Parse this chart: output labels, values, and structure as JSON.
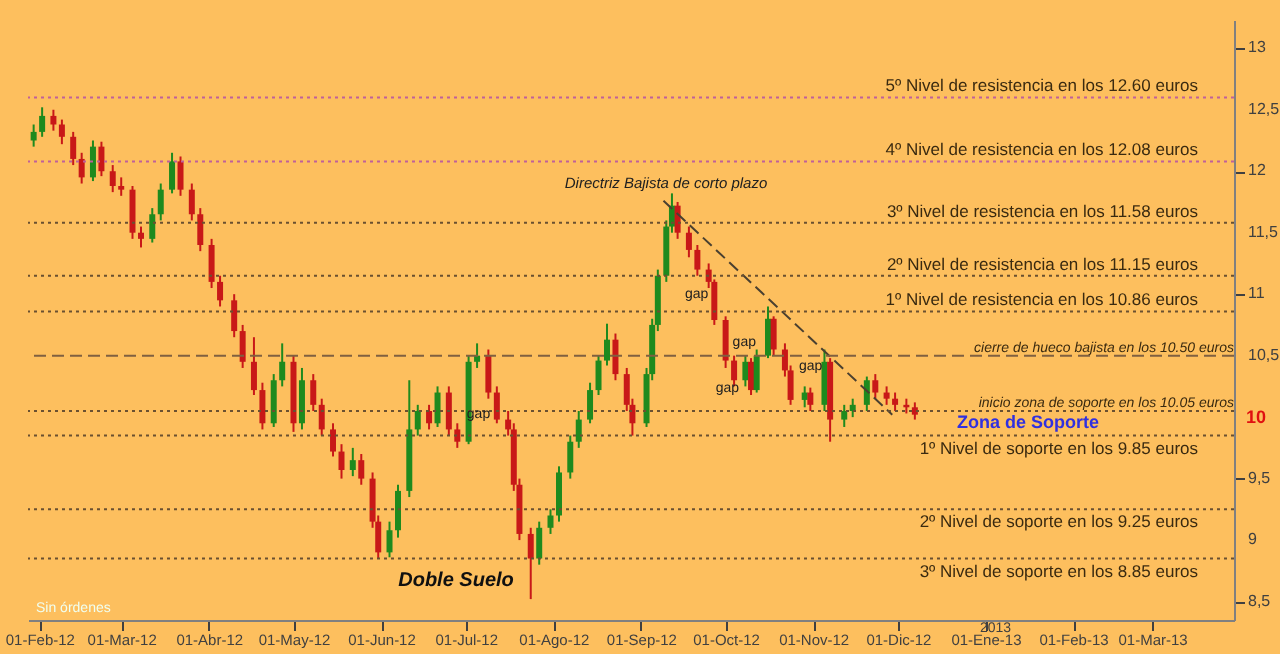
{
  "chart_data": {
    "type": "candlestick",
    "x": [
      "2012-01-30",
      "2012-02-02",
      "2012-02-06",
      "2012-02-09",
      "2012-02-13",
      "2012-02-16",
      "2012-02-20",
      "2012-02-23",
      "2012-02-27",
      "2012-03-01",
      "2012-03-05",
      "2012-03-08",
      "2012-03-12",
      "2012-03-15",
      "2012-03-19",
      "2012-03-22",
      "2012-03-26",
      "2012-03-29",
      "2012-04-02",
      "2012-04-05",
      "2012-04-10",
      "2012-04-13",
      "2012-04-17",
      "2012-04-20",
      "2012-04-24",
      "2012-04-27",
      "2012-05-01",
      "2012-05-04",
      "2012-05-08",
      "2012-05-11",
      "2012-05-15",
      "2012-05-18",
      "2012-05-22",
      "2012-05-25",
      "2012-05-29",
      "2012-05-31",
      "2012-06-04",
      "2012-06-07",
      "2012-06-11",
      "2012-06-14",
      "2012-06-18",
      "2012-06-21",
      "2012-06-25",
      "2012-06-28",
      "2012-07-02",
      "2012-07-05",
      "2012-07-09",
      "2012-07-12",
      "2012-07-16",
      "2012-07-18",
      "2012-07-20",
      "2012-07-24",
      "2012-07-27",
      "2012-07-31",
      "2012-08-03",
      "2012-08-07",
      "2012-08-10",
      "2012-08-14",
      "2012-08-17",
      "2012-08-20",
      "2012-08-23",
      "2012-08-27",
      "2012-08-29",
      "2012-09-03",
      "2012-09-05",
      "2012-09-07",
      "2012-09-10",
      "2012-09-12",
      "2012-09-14",
      "2012-09-18",
      "2012-09-21",
      "2012-09-25",
      "2012-09-27",
      "2012-10-01",
      "2012-10-04",
      "2012-10-08",
      "2012-10-10",
      "2012-10-12",
      "2012-10-16",
      "2012-10-18",
      "2012-10-22",
      "2012-10-24",
      "2012-10-29",
      "2012-10-31",
      "2012-11-05",
      "2012-11-07",
      "2012-11-12",
      "2012-11-15",
      "2012-11-20",
      "2012-11-23",
      "2012-11-27",
      "2012-11-30",
      "2012-12-04",
      "2012-12-07"
    ],
    "ohlc": [
      [
        12.25,
        12.38,
        12.2,
        12.32
      ],
      [
        12.32,
        12.52,
        12.28,
        12.45
      ],
      [
        12.45,
        12.5,
        12.33,
        12.38
      ],
      [
        12.38,
        12.42,
        12.22,
        12.28
      ],
      [
        12.28,
        12.32,
        12.05,
        12.1
      ],
      [
        12.1,
        12.15,
        11.9,
        11.95
      ],
      [
        11.95,
        12.25,
        11.92,
        12.2
      ],
      [
        12.2,
        12.24,
        11.96,
        12.0
      ],
      [
        12.0,
        12.05,
        11.83,
        11.88
      ],
      [
        11.88,
        11.95,
        11.8,
        11.85
      ],
      [
        11.85,
        11.88,
        11.45,
        11.5
      ],
      [
        11.5,
        11.55,
        11.38,
        11.45
      ],
      [
        11.45,
        11.7,
        11.42,
        11.65
      ],
      [
        11.65,
        11.9,
        11.6,
        11.85
      ],
      [
        11.85,
        12.15,
        11.82,
        12.08
      ],
      [
        12.08,
        12.12,
        11.8,
        11.85
      ],
      [
        11.85,
        11.9,
        11.6,
        11.65
      ],
      [
        11.65,
        11.7,
        11.35,
        11.4
      ],
      [
        11.4,
        11.45,
        11.05,
        11.1
      ],
      [
        11.1,
        11.15,
        10.9,
        10.95
      ],
      [
        10.95,
        11.0,
        10.65,
        10.7
      ],
      [
        10.7,
        10.75,
        10.4,
        10.45
      ],
      [
        10.45,
        10.65,
        10.18,
        10.22
      ],
      [
        10.22,
        10.28,
        9.9,
        9.95
      ],
      [
        9.95,
        10.35,
        9.92,
        10.3
      ],
      [
        10.3,
        10.6,
        10.25,
        10.45
      ],
      [
        10.45,
        10.5,
        9.88,
        9.95
      ],
      [
        9.95,
        10.4,
        9.9,
        10.3
      ],
      [
        10.3,
        10.35,
        10.05,
        10.1
      ],
      [
        10.1,
        10.15,
        9.85,
        9.9
      ],
      [
        9.9,
        9.95,
        9.68,
        9.72
      ],
      [
        9.72,
        9.78,
        9.5,
        9.57
      ],
      [
        9.57,
        9.75,
        9.52,
        9.65
      ],
      [
        9.65,
        9.7,
        9.45,
        9.5
      ],
      [
        9.5,
        9.55,
        9.1,
        9.15
      ],
      [
        9.15,
        9.2,
        8.85,
        8.9
      ],
      [
        8.9,
        9.15,
        8.86,
        9.08
      ],
      [
        9.08,
        9.45,
        9.02,
        9.4
      ],
      [
        9.4,
        10.3,
        9.35,
        9.9
      ],
      [
        9.9,
        10.1,
        9.85,
        10.05
      ],
      [
        10.05,
        10.1,
        9.9,
        9.95
      ],
      [
        9.95,
        10.25,
        9.92,
        10.2
      ],
      [
        10.2,
        10.25,
        9.85,
        9.9
      ],
      [
        9.9,
        9.95,
        9.75,
        9.8
      ],
      [
        9.8,
        10.5,
        9.78,
        10.45
      ],
      [
        10.45,
        10.6,
        10.4,
        10.5
      ],
      [
        10.5,
        10.55,
        10.15,
        10.2
      ],
      [
        10.2,
        10.25,
        9.95,
        9.98
      ],
      [
        9.98,
        10.05,
        9.85,
        9.9
      ],
      [
        9.9,
        9.95,
        9.4,
        9.45
      ],
      [
        9.45,
        9.5,
        9.0,
        9.05
      ],
      [
        9.05,
        9.1,
        8.52,
        8.85
      ],
      [
        8.85,
        9.15,
        8.8,
        9.1
      ],
      [
        9.1,
        9.25,
        9.05,
        9.2
      ],
      [
        9.2,
        9.6,
        9.15,
        9.55
      ],
      [
        9.55,
        9.85,
        9.5,
        9.8
      ],
      [
        9.8,
        10.05,
        9.75,
        9.98
      ],
      [
        9.98,
        10.28,
        9.95,
        10.22
      ],
      [
        10.22,
        10.5,
        10.18,
        10.46
      ],
      [
        10.46,
        10.76,
        10.42,
        10.63
      ],
      [
        10.63,
        10.68,
        10.3,
        10.35
      ],
      [
        10.35,
        10.4,
        10.05,
        10.1
      ],
      [
        10.1,
        10.15,
        9.85,
        9.95
      ],
      [
        9.95,
        10.4,
        9.92,
        10.35
      ],
      [
        10.35,
        10.8,
        10.3,
        10.75
      ],
      [
        10.75,
        11.2,
        10.7,
        11.15
      ],
      [
        11.15,
        11.6,
        11.1,
        11.55
      ],
      [
        11.55,
        11.82,
        11.5,
        11.72
      ],
      [
        11.72,
        11.75,
        11.45,
        11.5
      ],
      [
        11.5,
        11.55,
        11.3,
        11.36
      ],
      [
        11.36,
        11.4,
        11.15,
        11.2
      ],
      [
        11.2,
        11.25,
        11.05,
        11.1
      ],
      [
        11.1,
        11.12,
        10.75,
        10.79
      ],
      [
        10.79,
        10.82,
        10.4,
        10.46
      ],
      [
        10.46,
        10.5,
        10.25,
        10.3
      ],
      [
        10.3,
        10.5,
        10.25,
        10.45
      ],
      [
        10.45,
        10.48,
        10.18,
        10.22
      ],
      [
        10.22,
        10.55,
        10.2,
        10.5
      ],
      [
        10.5,
        10.9,
        10.48,
        10.8
      ],
      [
        10.8,
        10.82,
        10.5,
        10.55
      ],
      [
        10.55,
        10.6,
        10.33,
        10.38
      ],
      [
        10.38,
        10.42,
        10.1,
        10.14
      ],
      [
        10.14,
        10.25,
        10.08,
        10.2
      ],
      [
        10.2,
        10.24,
        10.05,
        10.1
      ],
      [
        10.1,
        10.55,
        10.05,
        10.45
      ],
      [
        10.45,
        10.48,
        9.8,
        9.98
      ],
      [
        9.98,
        10.1,
        9.92,
        10.05
      ],
      [
        10.05,
        10.15,
        10.0,
        10.1
      ],
      [
        10.1,
        10.33,
        10.05,
        10.3
      ],
      [
        10.3,
        10.35,
        10.15,
        10.2
      ],
      [
        10.2,
        10.25,
        10.1,
        10.15
      ],
      [
        10.15,
        10.2,
        10.05,
        10.1
      ],
      [
        10.1,
        10.15,
        10.03,
        10.08
      ],
      [
        10.08,
        10.12,
        9.98,
        10.02
      ]
    ],
    "series": [
      {
        "type": "line",
        "x": [
          "2012-09-09",
          "2012-11-29"
        ],
        "values": [
          11.76,
          10.02
        ],
        "color": "#4a4030",
        "line_style": "dashed"
      }
    ],
    "xlim": [
      "2012-01-28",
      "2013-03-30"
    ],
    "xticks": [
      {
        "value": "2012-02-01",
        "label": "01-Feb-12"
      },
      {
        "value": "2012-03-01",
        "label": "01-Mar-12"
      },
      {
        "value": "2012-04-01",
        "label": "01-Abr-12"
      },
      {
        "value": "2012-05-01",
        "label": "01-May-12"
      },
      {
        "value": "2012-06-01",
        "label": "01-Jun-12"
      },
      {
        "value": "2012-07-01",
        "label": "01-Jul-12"
      },
      {
        "value": "2012-08-01",
        "label": "01-Ago-12"
      },
      {
        "value": "2012-09-01",
        "label": "01-Sep-12"
      },
      {
        "value": "2012-10-01",
        "label": "01-Oct-12"
      },
      {
        "value": "2012-11-01",
        "label": "01-Nov-12"
      },
      {
        "value": "2012-12-01",
        "label": "01-Dic-12"
      },
      {
        "value": "2013-01-01",
        "label": "01-Ene-13"
      },
      {
        "value": "2013-02-01",
        "label": "01-Feb-13"
      },
      {
        "value": "2013-03-01",
        "label": "01-Mar-13"
      }
    ],
    "ylim": [
      8.35,
      13.23
    ],
    "yticks": [
      {
        "value": 8.5,
        "label": "8,5"
      },
      9,
      {
        "value": 9.5,
        "label": "9,5"
      },
      {
        "value": 10.5,
        "label": "10,5"
      },
      11,
      {
        "value": 11.5,
        "label": "11,5"
      },
      12,
      {
        "value": 12.5,
        "label": "12,5"
      },
      13
    ],
    "ref_lines": [
      {
        "axis": "y",
        "value": 12.6,
        "label": "5º Nivel de resistencia en los 12.60 euros",
        "color": "#c0609a",
        "line_style": "dotted"
      },
      {
        "axis": "y",
        "value": 12.08,
        "label": "4º Nivel de resistencia en los 12.08 euros",
        "color": "#c0609a",
        "line_style": "dotted"
      },
      {
        "axis": "y",
        "value": 11.58,
        "label": "3º Nivel de resistencia en los 11.58 euros",
        "color": "#6a5030",
        "line_style": "dotted"
      },
      {
        "axis": "y",
        "value": 11.15,
        "label": "2º Nivel de resistencia en los 11.15 euros",
        "color": "#6a5030",
        "line_style": "dotted"
      },
      {
        "axis": "y",
        "value": 10.86,
        "label": "1º Nivel de resistencia en los 10.86 euros",
        "color": "#6a5030",
        "line_style": "dotted"
      },
      {
        "axis": "y",
        "value": 10.5,
        "label": "cierre de hueco bajista en los 10.50 euros",
        "color": "#806040",
        "line_style": "dashed"
      },
      {
        "axis": "y",
        "value": 10.05,
        "label": "inicio zona de soporte en los 10.05 euros",
        "color": "#6a5030",
        "line_style": "dotted"
      },
      {
        "axis": "y",
        "value": 9.85,
        "label": "1º Nivel de soporte en los 9.85 euros",
        "color": "#6a5030",
        "line_style": "dotted"
      },
      {
        "axis": "y",
        "value": 9.25,
        "label": "2º Nivel de soporte en los 9.25 euros",
        "color": "#6a5030",
        "line_style": "dotted"
      },
      {
        "axis": "y",
        "value": 8.85,
        "label": "3º Nivel de soporte en los 8.85 euros",
        "color": "#6a5030",
        "line_style": "dotted"
      }
    ],
    "annotations": [
      "Directriz Bajista de corto plazo",
      "Doble Suelo",
      "Zona de Soporte",
      {
        "text": "gap",
        "x": "2012-06-25",
        "y": 9.96
      },
      {
        "text": "gap",
        "x": "2012-09-25",
        "y": 11.15
      },
      {
        "text": "gap",
        "x": "2012-10-16",
        "y": 10.64
      },
      {
        "text": "gap",
        "x": "2012-10-22",
        "y": 10.45
      },
      {
        "text": "gap",
        "x": "2012-10-10",
        "y": 10.3
      },
      {
        "text": "10",
        "x": "2013-03-30",
        "y": 10
      },
      "Sin órdenes",
      "2013"
    ]
  }
}
